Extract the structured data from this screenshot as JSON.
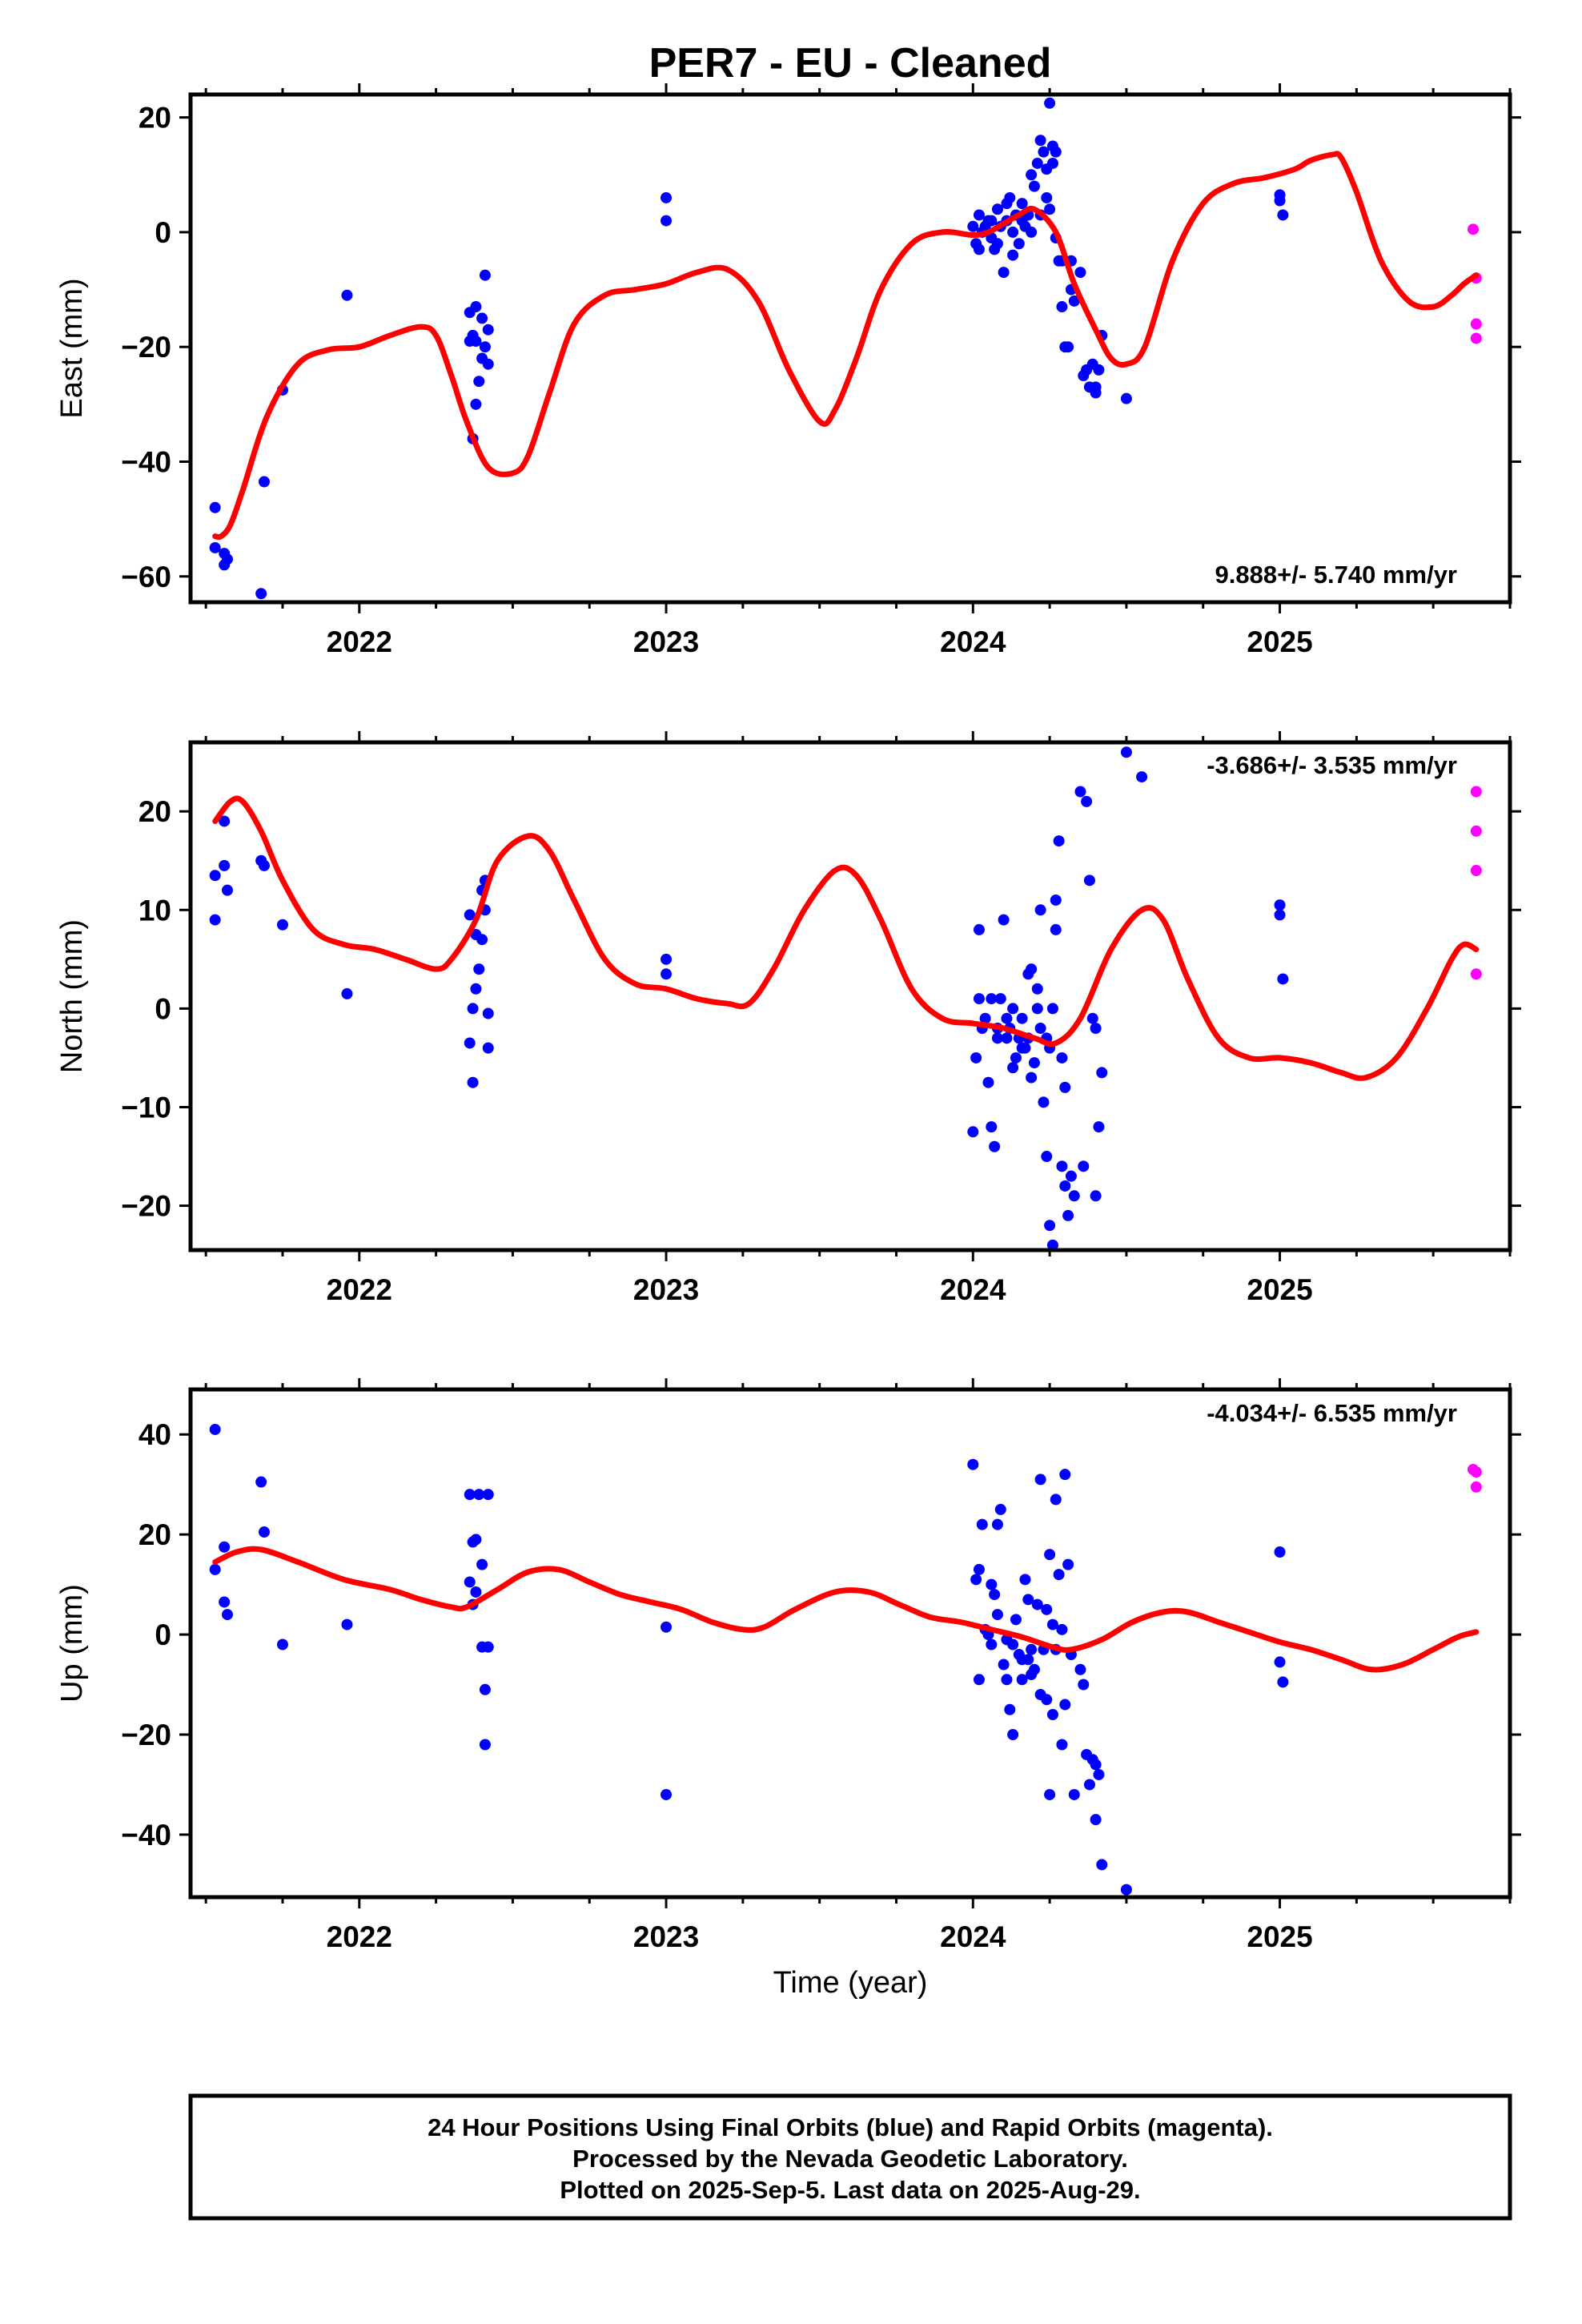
{
  "title": "PER7  - EU - Cleaned",
  "xlabel": "Time (year)",
  "footer": {
    "line1": "24 Hour Positions Using Final Orbits (blue) and Rapid Orbits (magenta).",
    "line2": "Processed by the Nevada Geodetic Laboratory.",
    "line3": "Plotted on 2025-Sep-5. Last data on 2025-Aug-29."
  },
  "colors": {
    "final": "#0000ff",
    "rapid": "#ff00ff",
    "model": "#ff0000",
    "frame": "#000000"
  },
  "chart_data": [
    {
      "type": "scatter",
      "ylabel": "East (mm)",
      "rate": "9.888+/- 5.740 mm/yr",
      "xlim": [
        2021.45,
        2025.75
      ],
      "ylim": [
        -64.5,
        24
      ],
      "xticks": [
        "2022",
        "2023",
        "2024",
        "2025"
      ],
      "yticks": [
        20,
        0,
        -20,
        -40,
        -60
      ],
      "series": [
        {
          "x": [
            2021.53,
            2021.53,
            2021.56,
            2021.56,
            2021.57,
            2021.68,
            2021.69,
            2021.75,
            2021.96,
            2022.36,
            2022.37,
            2022.37,
            2022.38,
            2022.38,
            2022.39,
            2022.4,
            2022.4,
            2022.41,
            2022.41,
            2022.42,
            2022.42,
            2022.36,
            2022.38,
            2023.0,
            2023.0,
            2024.0,
            2024.01,
            2024.02,
            2024.03,
            2024.05,
            2024.06,
            2024.07,
            2024.08,
            2024.09,
            2024.1,
            2024.11,
            2024.12,
            2024.13,
            2024.14,
            2024.15,
            2024.16,
            2024.17,
            2024.18,
            2024.19,
            2024.2,
            2024.21,
            2024.22,
            2024.23,
            2024.24,
            2024.25,
            2024.26,
            2024.27,
            2024.28,
            2024.29,
            2024.3,
            2024.31,
            2024.32,
            2024.33,
            2024.35,
            2024.37,
            2024.38,
            2024.39,
            2024.4,
            2024.42,
            2024.5,
            2025.0,
            2025.0,
            2025.01,
            2024.02,
            2024.04,
            2024.06,
            2024.08,
            2024.11,
            2024.13,
            2024.16,
            2024.19,
            2024.22,
            2024.24,
            2024.26,
            2024.29,
            2024.32,
            2024.36,
            2024.4,
            2024.41,
            2024.25,
            2024.27
          ],
          "y": [
            -48,
            -55,
            -56,
            -58,
            -57,
            -63,
            -43.5,
            -27.5,
            -11,
            -14,
            -18,
            -36,
            -13,
            -19,
            -26,
            -15,
            -22,
            -20,
            -7.5,
            -23,
            -17,
            -19,
            -30,
            6,
            2,
            1,
            -2,
            3,
            0,
            2,
            -1,
            -3,
            4,
            1,
            -7,
            2,
            6,
            0,
            3,
            -2,
            5,
            1,
            3,
            10,
            8,
            12,
            16,
            14,
            6,
            4,
            12,
            -1,
            -5,
            -13,
            -20,
            -20,
            -5,
            -12,
            -7,
            -24,
            -27,
            -23,
            -28,
            -18,
            -29,
            6.5,
            5.5,
            3,
            -3,
            1,
            2,
            -2,
            5,
            -4,
            2,
            0,
            3,
            11,
            15,
            -5,
            -10,
            -25,
            -27,
            -24,
            22.5,
            14
          ],
          "color": "blue"
        },
        {
          "x": [
            2025.63,
            2025.64,
            2025.64,
            2025.64
          ],
          "y": [
            0.5,
            -8,
            -16,
            -18.5
          ],
          "color": "magenta"
        }
      ],
      "model": {
        "x": [
          2021.53,
          2021.55,
          2021.58,
          2021.62,
          2021.7,
          2021.8,
          2021.9,
          2022.0,
          2022.1,
          2022.2,
          2022.25,
          2022.3,
          2022.35,
          2022.42,
          2022.5,
          2022.55,
          2022.62,
          2022.7,
          2022.8,
          2022.9,
          2023.0,
          2023.1,
          2023.2,
          2023.3,
          2023.4,
          2023.5,
          2023.55,
          2023.62,
          2023.7,
          2023.8,
          2023.9,
          2024.0,
          2024.05,
          2024.1,
          2024.15,
          2024.2,
          2024.27,
          2024.33,
          2024.4,
          2024.45,
          2024.5,
          2024.56,
          2024.65,
          2024.75,
          2024.85,
          2024.95,
          2025.05,
          2025.1,
          2025.17,
          2025.2,
          2025.25,
          2025.33,
          2025.42,
          2025.5,
          2025.56,
          2025.6,
          2025.64
        ],
        "y": [
          -53,
          -53,
          -51,
          -45,
          -32,
          -23,
          -20.5,
          -20,
          -18,
          -16.5,
          -18,
          -25,
          -33,
          -41,
          -42,
          -39,
          -28,
          -16,
          -11,
          -10,
          -9,
          -7,
          -6.5,
          -12,
          -24,
          -33,
          -31,
          -22,
          -10,
          -2,
          0,
          -0.5,
          0,
          1.5,
          3,
          4,
          0,
          -9,
          -17,
          -22,
          -23,
          -20,
          -5,
          5,
          8.5,
          9.5,
          11,
          12.5,
          13.5,
          13,
          7,
          -5,
          -12,
          -13,
          -11,
          -9,
          -7.5
        ]
      }
    },
    {
      "type": "scatter",
      "ylabel": "North (mm)",
      "rate": "-3.686+/- 3.535 mm/yr",
      "xlim": [
        2021.45,
        2025.75
      ],
      "ylim": [
        -24.5,
        27
      ],
      "xticks": [
        "2022",
        "2023",
        "2024",
        "2025"
      ],
      "yticks": [
        20,
        10,
        0,
        -10,
        -20
      ],
      "series": [
        {
          "x": [
            2021.53,
            2021.53,
            2021.56,
            2021.56,
            2021.57,
            2021.68,
            2021.69,
            2021.75,
            2021.96,
            2022.36,
            2022.37,
            2022.37,
            2022.38,
            2022.38,
            2022.39,
            2022.4,
            2022.4,
            2022.41,
            2022.41,
            2022.42,
            2022.42,
            2022.36,
            2023.0,
            2023.0,
            2024.0,
            2024.01,
            2024.02,
            2024.03,
            2024.05,
            2024.06,
            2024.07,
            2024.08,
            2024.09,
            2024.1,
            2024.11,
            2024.12,
            2024.13,
            2024.14,
            2024.15,
            2024.16,
            2024.17,
            2024.18,
            2024.19,
            2024.2,
            2024.21,
            2024.22,
            2024.23,
            2024.24,
            2024.25,
            2024.26,
            2024.27,
            2024.28,
            2024.29,
            2024.3,
            2024.31,
            2024.32,
            2024.33,
            2024.35,
            2024.37,
            2024.38,
            2024.39,
            2024.4,
            2024.42,
            2024.5,
            2024.55,
            2025.0,
            2025.0,
            2025.01,
            2024.02,
            2024.04,
            2024.06,
            2024.08,
            2024.11,
            2024.13,
            2024.16,
            2024.19,
            2024.22,
            2024.24,
            2024.26,
            2024.29,
            2024.3,
            2024.36,
            2024.4,
            2024.41,
            2024.25,
            2024.27,
            2024.18,
            2024.21
          ],
          "y": [
            13.5,
            9,
            19,
            14.5,
            12,
            15,
            14.5,
            8.5,
            1.5,
            9.5,
            0,
            -7.5,
            7.5,
            2,
            4,
            12,
            7,
            10,
            13,
            -4,
            -0.5,
            -3.5,
            5,
            3.5,
            -12.5,
            -5,
            8,
            -2,
            -7.5,
            -12,
            -14,
            -3,
            1,
            9,
            -3,
            -2,
            0,
            -5,
            -3,
            -1,
            -4,
            -3,
            4,
            -5.5,
            2,
            10,
            -9.5,
            -15,
            -22,
            -24,
            11,
            17,
            -16,
            -18,
            -21,
            -17,
            -19,
            22,
            21,
            13,
            -1,
            -2,
            -6.5,
            26,
            23.5,
            10.5,
            9.5,
            3,
            1,
            -1,
            1,
            -2,
            -1,
            -6,
            -4,
            -7,
            -2,
            -3,
            0,
            -5,
            -8,
            -16,
            -19,
            -12,
            -4,
            8,
            3.5,
            0
          ],
          "color": "blue"
        },
        {
          "x": [
            2025.64,
            2025.64,
            2025.64,
            2025.64
          ],
          "y": [
            22,
            18,
            14,
            3.5
          ],
          "color": "magenta"
        }
      ],
      "model": {
        "x": [
          2021.53,
          2021.58,
          2021.62,
          2021.68,
          2021.75,
          2021.85,
          2021.95,
          2022.05,
          2022.15,
          2022.25,
          2022.3,
          2022.38,
          2022.45,
          2022.55,
          2022.62,
          2022.7,
          2022.8,
          2022.9,
          2023.0,
          2023.1,
          2023.2,
          2023.27,
          2023.35,
          2023.45,
          2023.55,
          2023.62,
          2023.7,
          2023.8,
          2023.9,
          2024.0,
          2024.1,
          2024.2,
          2024.27,
          2024.35,
          2024.45,
          2024.55,
          2024.62,
          2024.7,
          2024.8,
          2024.9,
          2025.0,
          2025.1,
          2025.2,
          2025.28,
          2025.38,
          2025.48,
          2025.56,
          2025.6,
          2025.64
        ],
        "y": [
          19,
          21,
          21,
          18,
          13,
          8,
          6.5,
          6,
          5,
          4,
          5,
          9,
          15,
          17.5,
          16,
          11,
          5,
          2.5,
          2,
          1,
          0.5,
          0.5,
          4,
          10,
          14,
          13.5,
          9,
          2,
          -1,
          -1.5,
          -2,
          -3,
          -3.5,
          -1,
          6,
          10,
          9,
          3,
          -3,
          -5,
          -5,
          -5.5,
          -6.5,
          -7,
          -5,
          0,
          5,
          6.5,
          6
        ]
      }
    },
    {
      "type": "scatter",
      "ylabel": "Up (mm)",
      "rate": "-4.034+/- 6.535 mm/yr",
      "xlim": [
        2021.45,
        2025.75
      ],
      "ylim": [
        -52.5,
        49
      ],
      "xticks": [
        "2022",
        "2023",
        "2024",
        "2025"
      ],
      "yticks": [
        40,
        20,
        0,
        -20,
        -40
      ],
      "series": [
        {
          "x": [
            2021.53,
            2021.53,
            2021.56,
            2021.56,
            2021.57,
            2021.68,
            2021.69,
            2021.75,
            2021.96,
            2022.36,
            2022.37,
            2022.37,
            2022.38,
            2022.38,
            2022.39,
            2022.4,
            2022.4,
            2022.41,
            2022.41,
            2022.42,
            2022.42,
            2022.36,
            2023.0,
            2023.0,
            2024.0,
            2024.01,
            2024.02,
            2024.03,
            2024.05,
            2024.06,
            2024.07,
            2024.08,
            2024.09,
            2024.1,
            2024.11,
            2024.12,
            2024.13,
            2024.14,
            2024.15,
            2024.16,
            2024.17,
            2024.18,
            2024.19,
            2024.2,
            2024.21,
            2024.22,
            2024.23,
            2024.24,
            2024.25,
            2024.26,
            2024.27,
            2024.28,
            2024.29,
            2024.3,
            2024.31,
            2024.32,
            2024.33,
            2024.35,
            2024.37,
            2024.38,
            2024.39,
            2024.4,
            2024.42,
            2024.5,
            2025.0,
            2025.0,
            2025.01,
            2024.02,
            2024.04,
            2024.06,
            2024.08,
            2024.11,
            2024.13,
            2024.16,
            2024.19,
            2024.22,
            2024.24,
            2024.26,
            2024.29,
            2024.3,
            2024.36,
            2024.4,
            2024.41,
            2024.25,
            2024.27,
            2024.18
          ],
          "y": [
            41,
            13,
            17.5,
            6.5,
            4,
            30.5,
            20.5,
            -2,
            2,
            28,
            18.5,
            6,
            19,
            8.5,
            28,
            14,
            -2.5,
            -11,
            -22,
            28,
            -2.5,
            10.5,
            1.5,
            -32,
            34,
            11,
            13,
            22,
            0,
            -2,
            8,
            22,
            25,
            -6,
            -9,
            -15,
            -20,
            3,
            -4,
            -9,
            11,
            7,
            -3,
            -7,
            6,
            31,
            -3,
            -13,
            16,
            2,
            27,
            12,
            1,
            32,
            14,
            -4,
            -32,
            -7,
            -24,
            -30,
            -25,
            -37,
            -46,
            -51,
            16.5,
            -5.5,
            -9.5,
            -9,
            1,
            10,
            4,
            -1,
            -2,
            -5,
            -8,
            -12,
            5,
            -16,
            -22,
            -14,
            -10,
            -26,
            -28,
            -32,
            -3,
            -5
          ],
          "color": "blue"
        },
        {
          "x": [
            2025.63,
            2025.64,
            2025.64
          ],
          "y": [
            33,
            32.5,
            29.5
          ],
          "color": "magenta"
        }
      ],
      "model": {
        "x": [
          2021.53,
          2021.6,
          2021.68,
          2021.8,
          2021.95,
          2022.1,
          2022.2,
          2022.3,
          2022.35,
          2022.45,
          2022.55,
          2022.65,
          2022.75,
          2022.85,
          2022.95,
          2023.05,
          2023.15,
          2023.25,
          2023.32,
          2023.42,
          2023.55,
          2023.66,
          2023.76,
          2023.86,
          2023.96,
          2024.06,
          2024.16,
          2024.26,
          2024.32,
          2024.42,
          2024.52,
          2024.62,
          2024.7,
          2024.8,
          2024.9,
          2025.0,
          2025.1,
          2025.2,
          2025.3,
          2025.4,
          2025.5,
          2025.58,
          2025.64
        ],
        "y": [
          14.5,
          16.5,
          17,
          14.5,
          11,
          9,
          7,
          5.5,
          5.5,
          9,
          12.5,
          13,
          10.5,
          8,
          6.5,
          5,
          2.5,
          1,
          1.5,
          5,
          8.5,
          8.5,
          6,
          3.5,
          2.5,
          1,
          -0.5,
          -2.5,
          -3,
          -1,
          2.5,
          4.5,
          4.5,
          2.5,
          0.5,
          -1.5,
          -3,
          -5,
          -7,
          -6,
          -3,
          -0.5,
          0.5
        ]
      }
    }
  ]
}
